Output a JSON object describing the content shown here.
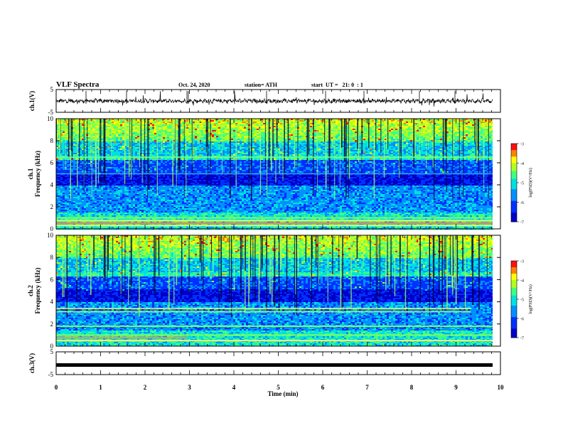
{
  "header": {
    "title": "VLF Spectra",
    "date": "Oct. 24, 2020",
    "station": "station= ATH",
    "start": "start  UT =   21: 0  : 1"
  },
  "colors": {
    "trace": "#000000",
    "colormap": [
      "#00008f",
      "#0000ff",
      "#0080ff",
      "#00ffff",
      "#80ff80",
      "#ffff00",
      "#ff8000",
      "#ff0000",
      "#ff8080",
      "#ffffff"
    ]
  },
  "chart_data": [
    {
      "type": "line",
      "name": "ch1-waveform",
      "ylabel": "ch.1(V)",
      "ylim": [
        -5,
        5
      ],
      "yticks": [
        "5",
        "-5"
      ],
      "baseline": 0,
      "description_of_values": "noise waveform around 0 V with impulsive spikes",
      "xlim": [
        0,
        10
      ]
    },
    {
      "type": "heatmap",
      "name": "ch1-spectrogram",
      "ylabel": "ch.1\nFrequency (kHz)",
      "ylabel_line1": "ch.1",
      "ylabel_line2": "Frequency (kHz)",
      "ylim": [
        0,
        10
      ],
      "yticks": [
        "0",
        "2",
        "4",
        "6",
        "8",
        "10"
      ],
      "xlim": [
        0,
        9.83
      ],
      "colorbar": {
        "label": "log(PSD)(V²/Hz)",
        "range": [
          -7,
          -3
        ],
        "ticks": [
          "-3",
          "-4",
          "-5",
          "-6",
          "-7"
        ]
      },
      "bands_khz": [
        0.25,
        0.5,
        0.75,
        1.0,
        6.5,
        5.0
      ]
    },
    {
      "type": "heatmap",
      "name": "ch2-spectrogram",
      "ylabel_line1": "ch.2",
      "ylabel_line2": "Frequency (kHz)",
      "ylim": [
        0,
        10
      ],
      "yticks": [
        "0",
        "2",
        "4",
        "6",
        "8",
        "10"
      ],
      "xlim": [
        0,
        9.83
      ],
      "colorbar": {
        "label": "log(PSD)(V²/Hz)",
        "range": [
          -7,
          -3
        ],
        "ticks": [
          "-3",
          "-4",
          "-5",
          "-6",
          "-7"
        ]
      },
      "bands_khz": [
        0.75,
        1.8,
        3.2,
        3.4,
        1.0
      ]
    },
    {
      "type": "line",
      "name": "ch3-waveform",
      "ylabel": "ch.3(V)",
      "ylim": [
        -5,
        5
      ],
      "yticks": [
        "5",
        "-5"
      ],
      "constant_value": -0.8,
      "xlim": [
        0,
        9.83
      ]
    }
  ],
  "xaxis": {
    "label": "Time (min)",
    "range": [
      0,
      10
    ],
    "ticks": [
      "0",
      "1",
      "2",
      "3",
      "4",
      "5",
      "6",
      "7",
      "8",
      "9",
      "10"
    ]
  }
}
